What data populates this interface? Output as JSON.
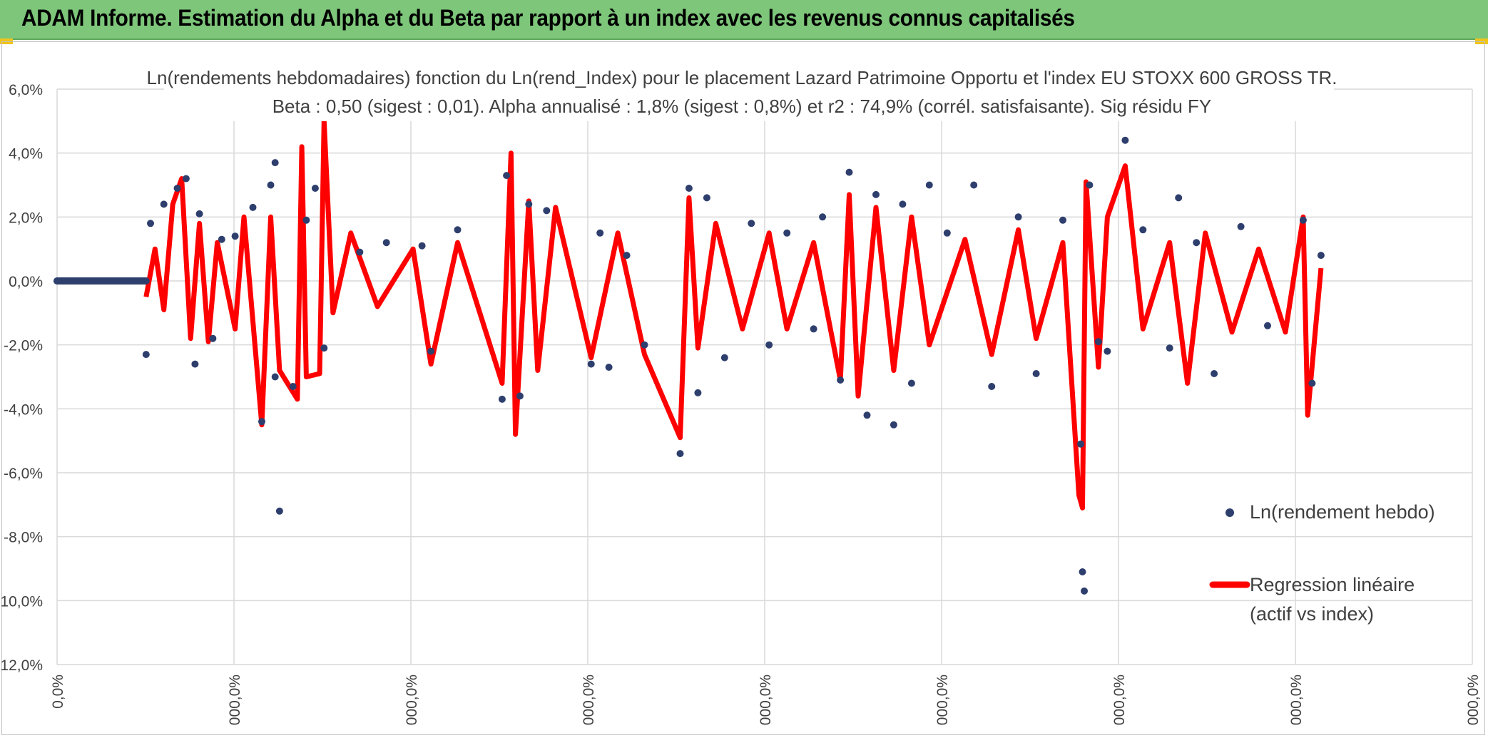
{
  "banner": {
    "title": "ADAM Informe. Estimation du Alpha et du Beta par rapport à un index avec les revenus connus capitalisés"
  },
  "colors": {
    "banner": "#7dc67a",
    "points": "#2e3f6e",
    "regression": "#ff0000",
    "grid": "#d9d9d9",
    "text": "#404040"
  },
  "chart_data": {
    "type": "scatter",
    "title": "Ln(rendements hebdomadaires) fonction du Ln(rend_Index) pour le placement Lazard Patrimoine Opportu et l'index EU STOXX 600 GROSS TR.",
    "subtitle": "Beta : 0,50 (sigest : 0,01). Alpha annualisé : 1,8% (sigest : 0,8%) et r2 : 74,9% (corrél. satisfaisante). Sig résidu FY",
    "xlabel": "",
    "ylabel": "",
    "y_ticks": [
      "6,0%",
      "4,0%",
      "2,0%",
      "0,0%",
      "-2,0%",
      "-4,0%",
      "-6,0%",
      "-8,0%",
      "-10,0%",
      "-12,0%"
    ],
    "x_ticks": [
      "0,0%",
      "000,0%",
      "000,0%",
      "000,0%",
      "000,0%",
      "000,0%",
      "000,0%",
      "000,0%",
      "000,0%"
    ],
    "ylim": [
      -12,
      6
    ],
    "grid": true,
    "legend_position": "bottom-right",
    "series": [
      {
        "name": "Ln(rendement hebdo)",
        "kind": "scatter",
        "points": [
          [
            0.0,
            0.0
          ],
          [
            0.4,
            0.0
          ],
          [
            0.8,
            0.0
          ],
          [
            1.0,
            -2.3
          ],
          [
            1.05,
            1.8
          ],
          [
            1.2,
            2.4
          ],
          [
            1.35,
            2.9
          ],
          [
            1.45,
            3.2
          ],
          [
            1.55,
            -2.6
          ],
          [
            1.6,
            2.1
          ],
          [
            1.75,
            -1.8
          ],
          [
            1.85,
            1.3
          ],
          [
            2.0,
            1.4
          ],
          [
            2.2,
            2.3
          ],
          [
            2.3,
            -4.4
          ],
          [
            2.4,
            3.0
          ],
          [
            2.45,
            -3.0
          ],
          [
            2.5,
            -7.2
          ],
          [
            2.45,
            3.7
          ],
          [
            2.65,
            -3.3
          ],
          [
            2.8,
            1.9
          ],
          [
            2.9,
            2.9
          ],
          [
            3.0,
            -2.1
          ],
          [
            3.4,
            0.9
          ],
          [
            3.7,
            1.2
          ],
          [
            4.1,
            1.1
          ],
          [
            4.2,
            -2.2
          ],
          [
            4.5,
            1.6
          ],
          [
            5.0,
            -3.7
          ],
          [
            5.05,
            3.3
          ],
          [
            5.2,
            -3.6
          ],
          [
            5.3,
            2.4
          ],
          [
            5.5,
            2.2
          ],
          [
            6.0,
            -2.6
          ],
          [
            6.1,
            1.5
          ],
          [
            6.2,
            -2.7
          ],
          [
            6.4,
            0.8
          ],
          [
            6.6,
            -2.0
          ],
          [
            7.0,
            -5.4
          ],
          [
            7.1,
            2.9
          ],
          [
            7.2,
            -3.5
          ],
          [
            7.3,
            2.6
          ],
          [
            7.5,
            -2.4
          ],
          [
            7.8,
            1.8
          ],
          [
            8.0,
            -2.0
          ],
          [
            8.2,
            1.5
          ],
          [
            8.5,
            -1.5
          ],
          [
            8.6,
            2.0
          ],
          [
            8.8,
            -3.1
          ],
          [
            8.9,
            3.4
          ],
          [
            9.1,
            -4.2
          ],
          [
            9.2,
            2.7
          ],
          [
            9.4,
            -4.5
          ],
          [
            9.5,
            2.4
          ],
          [
            9.6,
            -3.2
          ],
          [
            9.8,
            3.0
          ],
          [
            10.0,
            1.5
          ],
          [
            10.3,
            3.0
          ],
          [
            10.5,
            -3.3
          ],
          [
            10.8,
            2.0
          ],
          [
            11.0,
            -2.9
          ],
          [
            11.3,
            1.9
          ],
          [
            11.5,
            -5.1
          ],
          [
            11.52,
            -9.1
          ],
          [
            11.54,
            -9.7
          ],
          [
            11.6,
            3.0
          ],
          [
            11.7,
            -1.9
          ],
          [
            11.8,
            -2.2
          ],
          [
            12.0,
            4.4
          ],
          [
            12.2,
            1.6
          ],
          [
            12.5,
            -2.1
          ],
          [
            12.6,
            2.6
          ],
          [
            12.8,
            1.2
          ],
          [
            13.0,
            -2.9
          ],
          [
            13.3,
            1.7
          ],
          [
            13.6,
            -1.4
          ],
          [
            14.0,
            1.9
          ],
          [
            14.1,
            -3.2
          ],
          [
            14.2,
            0.8
          ]
        ]
      },
      {
        "name": "Regression linéaire (actif vs index)",
        "kind": "line",
        "legend_lines": [
          "Regression linéaire",
          "(actif vs index)"
        ],
        "points": [
          [
            1.0,
            -0.5
          ],
          [
            1.1,
            1.0
          ],
          [
            1.2,
            -0.9
          ],
          [
            1.3,
            2.4
          ],
          [
            1.4,
            3.2
          ],
          [
            1.5,
            -1.8
          ],
          [
            1.6,
            1.8
          ],
          [
            1.7,
            -1.9
          ],
          [
            1.8,
            1.2
          ],
          [
            2.0,
            -1.5
          ],
          [
            2.1,
            2.0
          ],
          [
            2.3,
            -4.5
          ],
          [
            2.4,
            2.0
          ],
          [
            2.5,
            -2.8
          ],
          [
            2.7,
            -3.7
          ],
          [
            2.75,
            4.2
          ],
          [
            2.8,
            -3.0
          ],
          [
            2.95,
            -2.9
          ],
          [
            3.0,
            5.0
          ],
          [
            3.1,
            -1.0
          ],
          [
            3.3,
            1.5
          ],
          [
            3.6,
            -0.8
          ],
          [
            4.0,
            1.0
          ],
          [
            4.2,
            -2.6
          ],
          [
            4.5,
            1.2
          ],
          [
            5.0,
            -3.2
          ],
          [
            5.1,
            4.0
          ],
          [
            5.15,
            -4.8
          ],
          [
            5.3,
            2.5
          ],
          [
            5.4,
            -2.8
          ],
          [
            5.6,
            2.3
          ],
          [
            6.0,
            -2.4
          ],
          [
            6.3,
            1.5
          ],
          [
            6.6,
            -2.3
          ],
          [
            7.0,
            -4.9
          ],
          [
            7.1,
            2.6
          ],
          [
            7.2,
            -2.1
          ],
          [
            7.4,
            1.8
          ],
          [
            7.7,
            -1.5
          ],
          [
            8.0,
            1.5
          ],
          [
            8.2,
            -1.5
          ],
          [
            8.5,
            1.2
          ],
          [
            8.8,
            -3.1
          ],
          [
            8.9,
            2.7
          ],
          [
            9.0,
            -3.6
          ],
          [
            9.2,
            2.3
          ],
          [
            9.4,
            -2.8
          ],
          [
            9.6,
            2.0
          ],
          [
            9.8,
            -2.0
          ],
          [
            10.2,
            1.3
          ],
          [
            10.5,
            -2.3
          ],
          [
            10.8,
            1.6
          ],
          [
            11.0,
            -1.8
          ],
          [
            11.3,
            1.2
          ],
          [
            11.48,
            -6.7
          ],
          [
            11.52,
            -7.1
          ],
          [
            11.56,
            3.1
          ],
          [
            11.7,
            -2.7
          ],
          [
            11.8,
            2.0
          ],
          [
            12.0,
            3.6
          ],
          [
            12.2,
            -1.5
          ],
          [
            12.5,
            1.2
          ],
          [
            12.7,
            -3.2
          ],
          [
            12.9,
            1.5
          ],
          [
            13.2,
            -1.6
          ],
          [
            13.5,
            1.0
          ],
          [
            13.8,
            -1.6
          ],
          [
            14.0,
            2.0
          ],
          [
            14.05,
            -4.2
          ],
          [
            14.2,
            0.4
          ]
        ]
      }
    ]
  }
}
